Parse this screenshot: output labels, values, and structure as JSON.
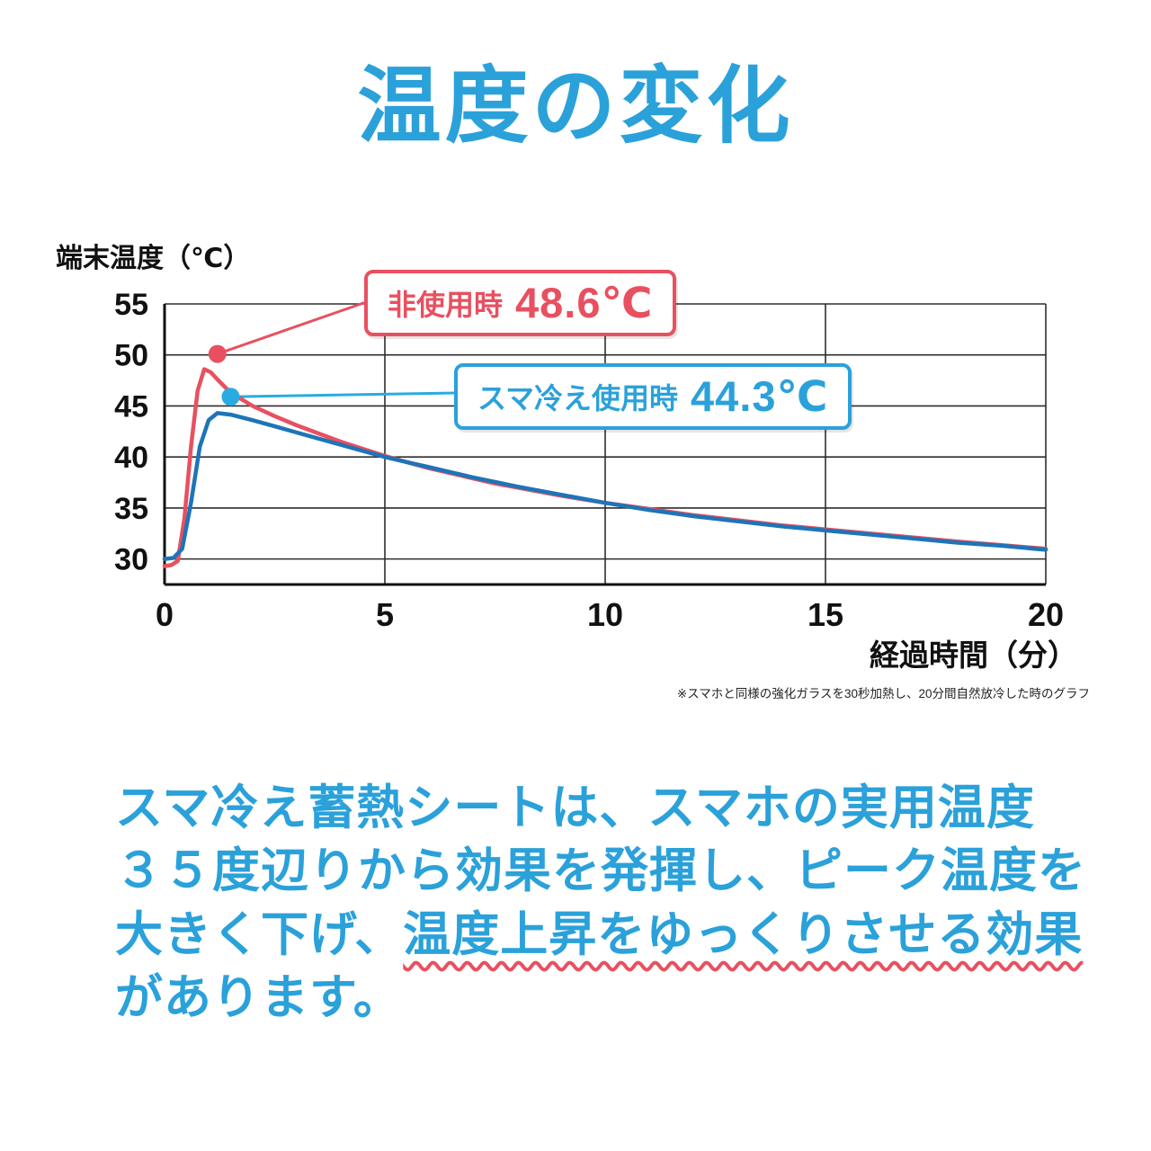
{
  "title": "温度の変化",
  "colors": {
    "accent_blue": "#2ba1da",
    "curve_blue": "#1e74b8",
    "accent_red": "#e85060",
    "marker_blue": "#29abe2",
    "grid": "#2e2e2e",
    "axis": "#111111"
  },
  "chart": {
    "y_axis_label": "端末温度（℃）",
    "x_axis_label": "経過時間（分）",
    "footnote": "※スマホと同様の強化ガラスを30秒加熱し、20分間自然放冷した時のグラフ",
    "callouts": {
      "red": {
        "label": "非使用時",
        "value": "48.6℃"
      },
      "blue": {
        "label": "スマ冷え使用時",
        "value": "44.3℃"
      }
    }
  },
  "chart_data": {
    "type": "line",
    "title": "温度の変化",
    "xlabel": "経過時間（分）",
    "ylabel": "端末温度（℃）",
    "xlim": [
      0,
      20
    ],
    "ylim": [
      27.5,
      55
    ],
    "x_ticks": [
      0,
      5,
      10,
      15,
      20
    ],
    "y_ticks": [
      30,
      35,
      40,
      45,
      50,
      55
    ],
    "grid": true,
    "legend_position": "none",
    "series": [
      {
        "name": "非使用時",
        "color": "#e85060",
        "peak_label": "48.6℃",
        "x": [
          0,
          0.15,
          0.3,
          0.45,
          0.6,
          0.75,
          0.9,
          1.05,
          1.2,
          1.5,
          2,
          2.5,
          3,
          3.5,
          4,
          4.5,
          5,
          5.5,
          6,
          6.5,
          7,
          7.5,
          8,
          9,
          10,
          11,
          12,
          13,
          14,
          15,
          16,
          17,
          18,
          19,
          20
        ],
        "y": [
          29.3,
          29.4,
          29.8,
          34,
          41,
          46.5,
          48.6,
          48.3,
          47.6,
          46.3,
          45.0,
          44.0,
          43.1,
          42.3,
          41.5,
          40.8,
          40.1,
          39.5,
          38.9,
          38.4,
          37.9,
          37.4,
          37.0,
          36.2,
          35.5,
          34.9,
          34.3,
          33.8,
          33.3,
          32.9,
          32.5,
          32.1,
          31.7,
          31.35,
          31.0
        ]
      },
      {
        "name": "スマ冷え使用時",
        "color": "#1e74b8",
        "peak_label": "44.3℃",
        "x": [
          0,
          0.2,
          0.4,
          0.6,
          0.8,
          1.0,
          1.2,
          1.5,
          2,
          2.5,
          3,
          3.5,
          4,
          4.5,
          5,
          5.5,
          6,
          6.5,
          7,
          7.5,
          8,
          9,
          10,
          11,
          12,
          13,
          14,
          15,
          16,
          17,
          18,
          19,
          20
        ],
        "y": [
          30.0,
          30.1,
          31.0,
          35.5,
          41.0,
          43.6,
          44.3,
          44.15,
          43.6,
          43.0,
          42.4,
          41.8,
          41.2,
          40.6,
          40.0,
          39.5,
          39.0,
          38.5,
          38.0,
          37.55,
          37.1,
          36.3,
          35.5,
          34.8,
          34.2,
          33.7,
          33.2,
          32.8,
          32.4,
          32.0,
          31.6,
          31.3,
          30.9
        ]
      }
    ],
    "markers": [
      {
        "x": 1.2,
        "y": 50.1,
        "color": "#e85060"
      },
      {
        "x": 1.5,
        "y": 45.9,
        "color": "#29abe2"
      }
    ]
  },
  "paragraph": {
    "line1": "スマ冷え蓄熱シートは、スマホの実用温度",
    "line2": "３５度辺りから効果を発揮し、ピーク温度を",
    "line3_plain": "大きく下げ、",
    "line3_wavy": "温度上昇をゆっくりさせる効果",
    "line4": "があります。"
  }
}
